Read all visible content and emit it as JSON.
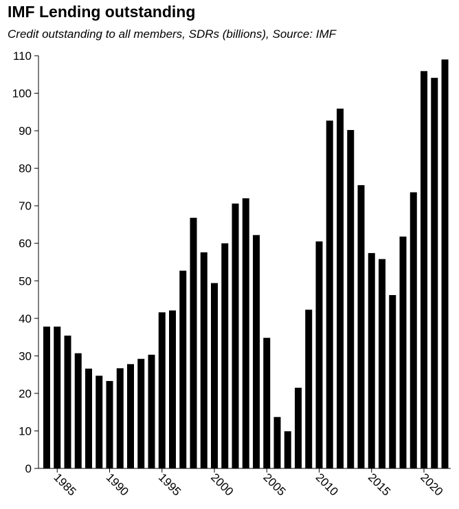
{
  "chart_data": {
    "type": "bar",
    "title": "IMF Lending outstanding",
    "subtitle": "Credit outstanding to all members, SDRs (billions), Source: IMF",
    "xlabel": "",
    "ylabel": "",
    "ylim": [
      0,
      110
    ],
    "y_ticks": [
      "0",
      "10",
      "20",
      "30",
      "40",
      "50",
      "60",
      "70",
      "80",
      "90",
      "100",
      "110"
    ],
    "x_ticks": [
      "1985",
      "1990",
      "1995",
      "2000",
      "2005",
      "2010",
      "2015",
      "2020"
    ],
    "grid": false,
    "categories": [
      1984,
      1985,
      1986,
      1987,
      1988,
      1989,
      1990,
      1991,
      1992,
      1993,
      1994,
      1995,
      1996,
      1997,
      1998,
      1999,
      2000,
      2001,
      2002,
      2003,
      2004,
      2005,
      2006,
      2007,
      2008,
      2009,
      2010,
      2011,
      2012,
      2013,
      2014,
      2015,
      2016,
      2017,
      2018,
      2019,
      2020,
      2021,
      2022
    ],
    "values": [
      37.8,
      37.8,
      35.4,
      30.7,
      26.6,
      24.7,
      23.3,
      26.7,
      27.8,
      29.2,
      30.3,
      41.6,
      42.1,
      52.7,
      66.8,
      57.6,
      49.4,
      60.0,
      70.6,
      72.0,
      62.2,
      34.8,
      13.7,
      9.9,
      21.5,
      42.3,
      60.5,
      92.7,
      95.9,
      90.2,
      75.5,
      57.4,
      55.8,
      46.2,
      61.8,
      73.6,
      105.9,
      104.1,
      109.0
    ],
    "bar_color": "#000000"
  }
}
